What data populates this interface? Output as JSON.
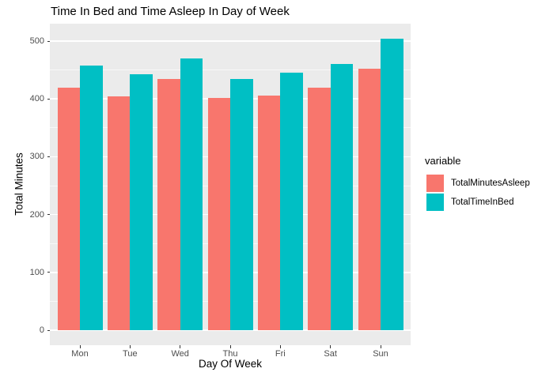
{
  "title": "Time In Bed and Time Asleep In Day of Week",
  "chart_data": {
    "type": "bar",
    "title": "Time In Bed and Time Asleep In Day of Week",
    "xlabel": "Day Of Week",
    "ylabel": "Total Minutes",
    "legend_title": "variable",
    "legend_position": "right",
    "grid": true,
    "categories": [
      "Mon",
      "Tue",
      "Wed",
      "Thu",
      "Fri",
      "Sat",
      "Sun"
    ],
    "series": [
      {
        "name": "TotalMinutesAsleep",
        "color": "#F8766D",
        "values": [
          419.5,
          404.5,
          434.7,
          401.3,
          405.4,
          419.1,
          452.7
        ]
      },
      {
        "name": "TotalTimeInBed",
        "color": "#00BFC4",
        "values": [
          457.0,
          443.3,
          470.0,
          434.9,
          445.1,
          459.8,
          503.5
        ]
      }
    ],
    "ylim": [
      0,
      530
    ],
    "yticks": [
      0,
      100,
      200,
      300,
      400,
      500
    ],
    "yticks_minor": [
      50,
      150,
      250,
      350,
      450
    ]
  },
  "colors": {
    "panel_background": "#EBEBEB",
    "gridline": "#FFFFFF",
    "tick_text": "#4D4D4D",
    "tick_mark": "#333333",
    "title_text": "#000000"
  }
}
